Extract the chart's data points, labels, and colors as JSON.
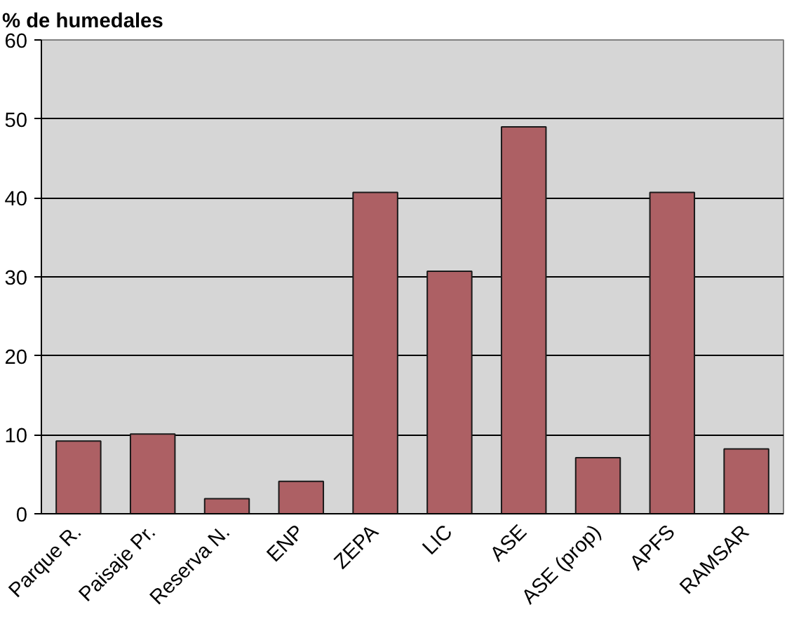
{
  "chart_data": {
    "type": "bar",
    "title": "% de humedales",
    "categories": [
      "Parque R.",
      "Paisaje Pr.",
      "Reserva N.",
      "ENP",
      "ZEPA",
      "LIC",
      "ASE",
      "ASE (prop)",
      "APFS",
      "RAMSAR"
    ],
    "values": [
      9.2,
      10.1,
      1.9,
      4.1,
      40.7,
      30.7,
      49.0,
      7.1,
      40.7,
      8.2
    ],
    "color": "#ad6064",
    "ylim": [
      0,
      60
    ],
    "yticks": [
      0,
      10,
      20,
      30,
      40,
      50,
      60
    ],
    "grid": "y"
  }
}
